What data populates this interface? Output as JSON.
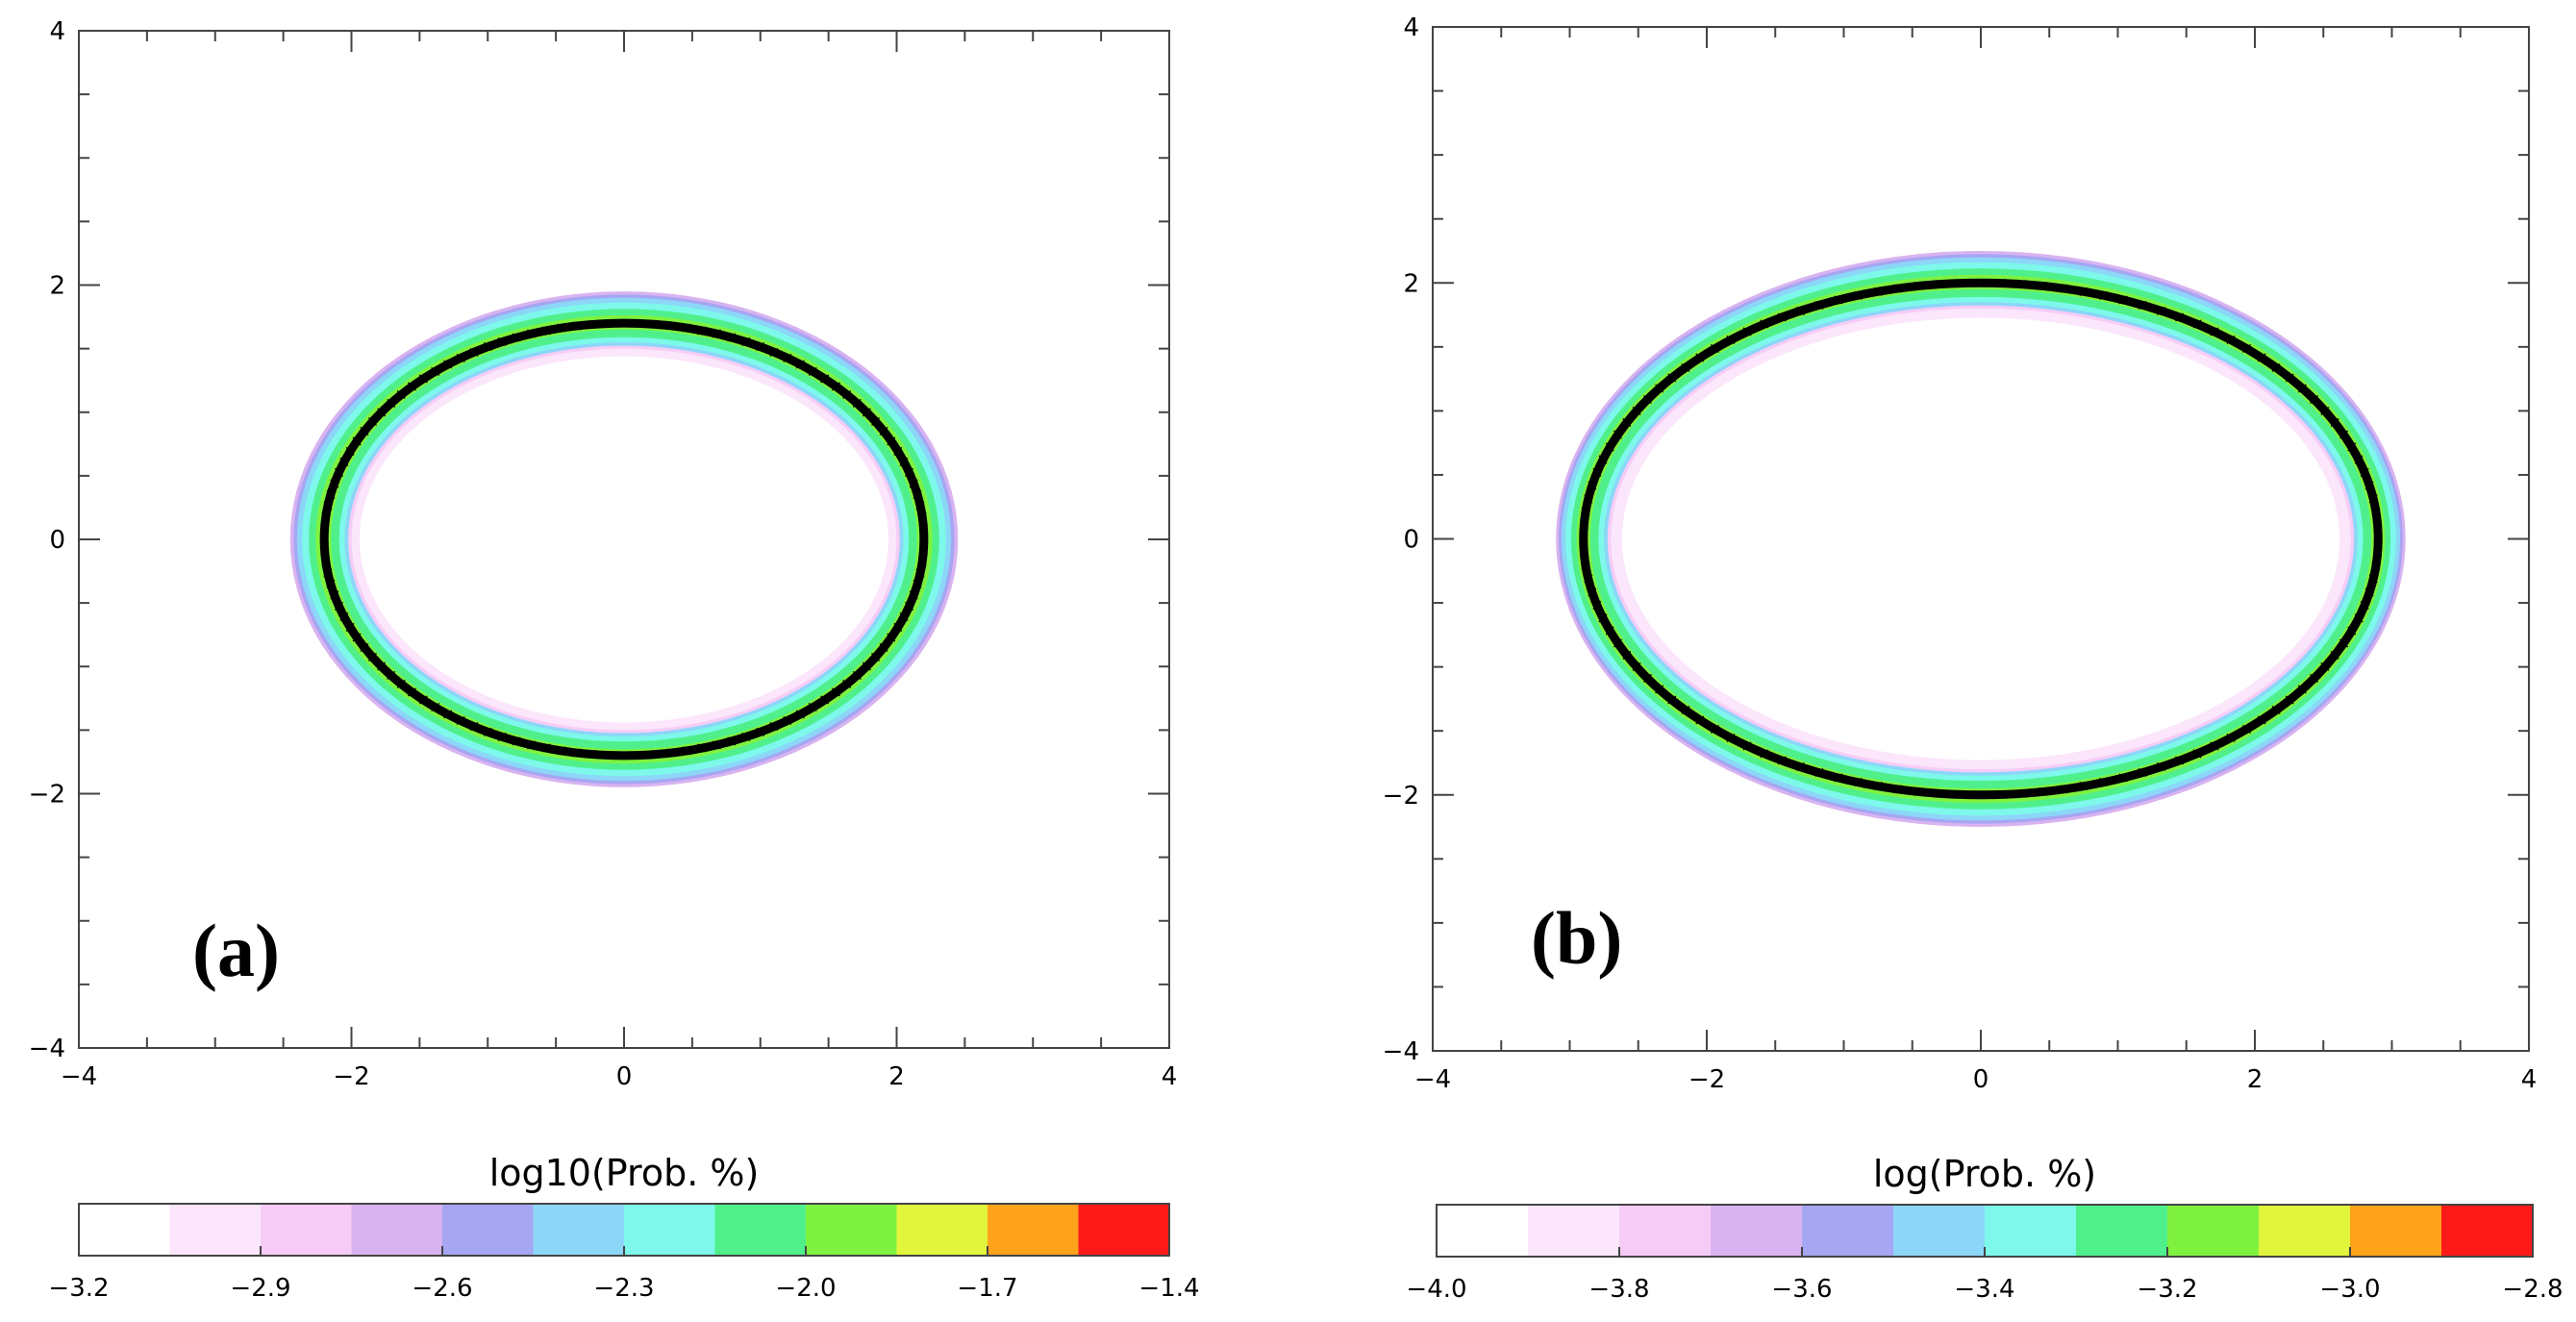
{
  "chart_data": [
    {
      "type": "heatmap",
      "panel_label": "(a)",
      "xlim": [
        -4,
        4
      ],
      "ylim": [
        -4,
        4
      ],
      "x_ticks": [
        "-4",
        "-2",
        "0",
        "2",
        "4"
      ],
      "y_ticks": [
        "4",
        "2",
        "0",
        "-2",
        "-4"
      ],
      "curve": {
        "shape": "ellipse",
        "x_semi_axis": 2.2,
        "y_semi_axis": 1.7,
        "center": [
          0,
          0
        ]
      },
      "density_band": {
        "outer_x_semi_axis": 2.45,
        "outer_y_semi_axis": 1.95,
        "inner_x_semi_axis": 2.0,
        "inner_y_semi_axis": 1.5
      },
      "colorbar": {
        "title": "log10(Prob. %)",
        "range": [
          -3.2,
          -1.4
        ],
        "tick_labels": [
          "-3.2",
          "-2.9",
          "-2.6",
          "-2.3",
          "-2.0",
          "-1.7",
          "-1.4"
        ],
        "colors": [
          "#ffffff",
          "#fbe6fb",
          "#f6ccf6",
          "#d9b3f0",
          "#a6a6f2",
          "#8cd6f8",
          "#7df8ea",
          "#4ff08c",
          "#7ff23f",
          "#e1f53c",
          "#ffa31a",
          "#ff1a1a"
        ]
      }
    },
    {
      "type": "heatmap",
      "panel_label": "(b)",
      "xlim": [
        -4,
        4
      ],
      "ylim": [
        -4,
        4
      ],
      "x_ticks": [
        "-4",
        "-2",
        "0",
        "2",
        "4"
      ],
      "y_ticks": [
        "4",
        "2",
        "0",
        "-2",
        "-4"
      ],
      "curve": {
        "shape": "ellipse",
        "x_semi_axis": 2.9,
        "y_semi_axis": 2.0,
        "center": [
          0,
          0
        ]
      },
      "density_band": {
        "outer_x_semi_axis": 3.1,
        "outer_y_semi_axis": 2.25,
        "inner_x_semi_axis": 2.7,
        "inner_y_semi_axis": 1.8
      },
      "colorbar": {
        "title": "log(Prob. %)",
        "range": [
          -4.0,
          -2.8
        ],
        "tick_labels": [
          "-4.0",
          "-3.8",
          "-3.6",
          "-3.4",
          "-3.2",
          "-3.0",
          "-2.8"
        ],
        "colors": [
          "#ffffff",
          "#fbe6fb",
          "#f6ccf6",
          "#d9b3f0",
          "#a6a6f2",
          "#8cd6f8",
          "#7df8ea",
          "#4ff08c",
          "#7ff23f",
          "#e1f53c",
          "#ffa31a",
          "#ff1a1a"
        ]
      }
    }
  ]
}
